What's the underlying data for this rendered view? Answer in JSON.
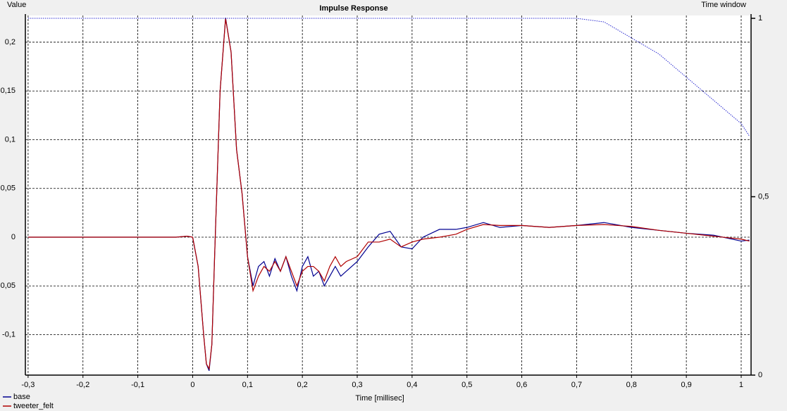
{
  "chart_data": {
    "type": "line",
    "title": "Impulse Response",
    "ylabel": "Value",
    "y2label": "Time window",
    "xlabel": "Time [millisec]",
    "x": [
      -0.3,
      -0.2,
      -0.1,
      -0.05,
      -0.03,
      -0.01,
      0,
      0.01,
      0.02,
      0.025,
      0.03,
      0.035,
      0.04,
      0.05,
      0.06,
      0.07,
      0.08,
      0.09,
      0.1,
      0.11,
      0.12,
      0.13,
      0.14,
      0.15,
      0.16,
      0.17,
      0.18,
      0.19,
      0.2,
      0.21,
      0.22,
      0.23,
      0.24,
      0.25,
      0.26,
      0.27,
      0.28,
      0.3,
      0.32,
      0.34,
      0.36,
      0.38,
      0.4,
      0.42,
      0.45,
      0.48,
      0.5,
      0.53,
      0.56,
      0.6,
      0.65,
      0.7,
      0.75,
      0.8,
      0.85,
      0.9,
      0.95,
      1.0,
      1.015
    ],
    "series": [
      {
        "name": "base",
        "color": "#000090",
        "values": [
          0,
          0,
          0,
          0,
          0,
          0.001,
          0,
          -0.03,
          -0.1,
          -0.13,
          -0.137,
          -0.11,
          -0.02,
          0.15,
          0.225,
          0.19,
          0.09,
          0.045,
          -0.02,
          -0.05,
          -0.03,
          -0.025,
          -0.04,
          -0.022,
          -0.035,
          -0.02,
          -0.04,
          -0.055,
          -0.03,
          -0.02,
          -0.04,
          -0.035,
          -0.05,
          -0.04,
          -0.03,
          -0.04,
          -0.035,
          -0.025,
          -0.01,
          0.003,
          0.006,
          -0.01,
          -0.012,
          0.0,
          0.008,
          0.008,
          0.01,
          0.015,
          0.01,
          0.012,
          0.01,
          0.012,
          0.015,
          0.01,
          0.007,
          0.004,
          0.002,
          -0.004,
          -0.003
        ]
      },
      {
        "name": "tweeter_felt",
        "color": "#b00000",
        "values": [
          0,
          0,
          0,
          0,
          0,
          0.001,
          0,
          -0.03,
          -0.1,
          -0.13,
          -0.135,
          -0.11,
          -0.02,
          0.15,
          0.224,
          0.19,
          0.09,
          0.045,
          -0.02,
          -0.055,
          -0.04,
          -0.03,
          -0.035,
          -0.025,
          -0.035,
          -0.02,
          -0.035,
          -0.05,
          -0.035,
          -0.03,
          -0.03,
          -0.035,
          -0.045,
          -0.03,
          -0.02,
          -0.03,
          -0.025,
          -0.02,
          -0.005,
          -0.005,
          -0.002,
          -0.01,
          -0.005,
          -0.002,
          0.0,
          0.003,
          0.008,
          0.013,
          0.012,
          0.012,
          0.01,
          0.012,
          0.013,
          0.011,
          0.007,
          0.004,
          0.001,
          -0.002,
          -0.004
        ]
      },
      {
        "color": "#2a2ad0",
        "axis": "y2",
        "style": "dotted",
        "values": [
          1,
          1,
          1,
          1,
          1,
          1,
          1,
          1,
          1,
          1,
          1,
          1,
          1,
          1,
          1,
          1,
          1,
          1,
          1,
          1,
          1,
          1,
          1,
          1,
          1,
          1,
          1,
          1,
          1,
          1,
          1,
          1,
          1,
          1,
          1,
          1,
          1,
          1,
          1,
          1,
          1,
          1,
          1,
          1,
          1,
          1,
          1,
          1,
          1,
          1,
          1,
          1,
          0.99,
          0.945,
          0.9,
          0.835,
          0.77,
          0.705,
          0.67
        ]
      }
    ],
    "xlim": [
      -0.305,
      1.018
    ],
    "xticks": [
      {
        "value": -0.3,
        "label": "-0,3"
      },
      {
        "value": -0.2,
        "label": "-0,2"
      },
      {
        "value": -0.1,
        "label": "-0,1"
      },
      0,
      {
        "value": 0.1,
        "label": "0,1"
      },
      {
        "value": 0.2,
        "label": "0,2"
      },
      {
        "value": 0.3,
        "label": "0,3"
      },
      {
        "value": 0.4,
        "label": "0,4"
      },
      {
        "value": 0.5,
        "label": "0,5"
      },
      {
        "value": 0.6,
        "label": "0,6"
      },
      {
        "value": 0.7,
        "label": "0,7"
      },
      {
        "value": 0.8,
        "label": "0,8"
      },
      {
        "value": 0.9,
        "label": "0,9"
      },
      1
    ],
    "ylim": [
      -0.1415,
      0.2274
    ],
    "yticks": [
      {
        "value": -0.1,
        "label": "-0,1"
      },
      {
        "value": -0.05,
        "label": "-0,05"
      },
      0,
      {
        "value": 0.05,
        "label": "0,05"
      },
      {
        "value": 0.1,
        "label": "0,1"
      },
      {
        "value": 0.15,
        "label": "0,15"
      },
      {
        "value": 0.2,
        "label": "0,2"
      }
    ],
    "y2lim": [
      0,
      1.008
    ],
    "y2ticks": [
      0,
      {
        "value": 0.5,
        "label": "0,5"
      },
      1
    ],
    "grid": true,
    "legend": "bottom-left"
  }
}
